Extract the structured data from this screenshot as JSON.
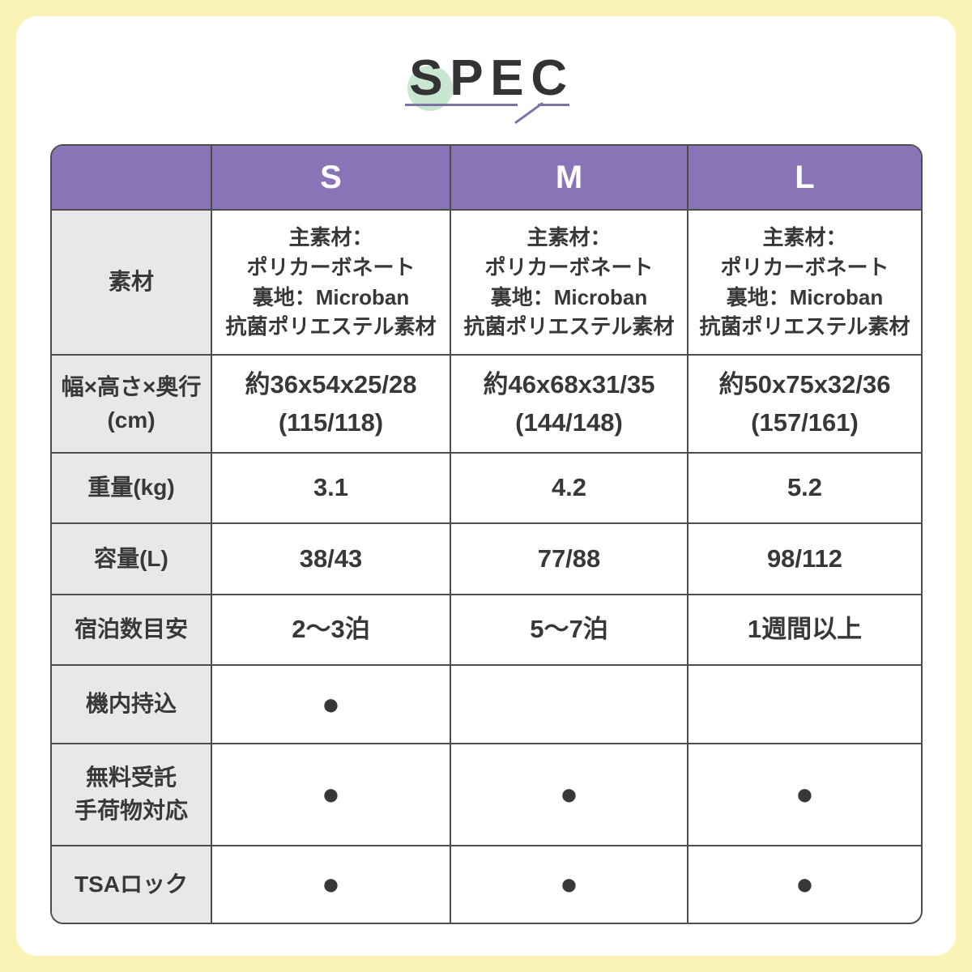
{
  "page": {
    "frame_color": "#FAF3B5",
    "card_color": "#FFFFFF"
  },
  "title": {
    "text": "SPEC",
    "text_color": "#333333",
    "circle_color": "#C8E6D0",
    "underline_color": "#7C73A5"
  },
  "table": {
    "border_color": "#4D4D4D",
    "header_bg": "#8A74B8",
    "header_text_color": "#FFFFFF",
    "label_bg": "#E9E8E8",
    "text_color": "#383838",
    "dot_symbol": "●",
    "columns": [
      "S",
      "M",
      "L"
    ],
    "rows": [
      {
        "key": "material",
        "label_lines": [
          "素材"
        ],
        "values": [
          [
            "主素材：",
            "ポリカーボネート",
            "裏地：Microban",
            "抗菌ポリエステル素材"
          ],
          [
            "主素材：",
            "ポリカーボネート",
            "裏地：Microban",
            "抗菌ポリエステル素材"
          ],
          [
            "主素材：",
            "ポリカーボネート",
            "裏地：Microban",
            "抗菌ポリエステル素材"
          ]
        ]
      },
      {
        "key": "dimensions",
        "label_lines": [
          "幅×高さ×奥行",
          "(cm)"
        ],
        "values": [
          [
            "約36x54x25/28",
            "(115/118)"
          ],
          [
            "約46x68x31/35",
            "(144/148)"
          ],
          [
            "約50x75x32/36",
            "(157/161)"
          ]
        ]
      },
      {
        "key": "weight",
        "label_lines": [
          "重量(kg)"
        ],
        "values": [
          [
            "3.1"
          ],
          [
            "4.2"
          ],
          [
            "5.2"
          ]
        ]
      },
      {
        "key": "capacity",
        "label_lines": [
          "容量(L)"
        ],
        "values": [
          [
            "38/43"
          ],
          [
            "77/88"
          ],
          [
            "98/112"
          ]
        ]
      },
      {
        "key": "nights",
        "label_lines": [
          "宿泊数目安"
        ],
        "values": [
          [
            "2〜3泊"
          ],
          [
            "5〜7泊"
          ],
          [
            "1週間以上"
          ]
        ]
      },
      {
        "key": "carry-on",
        "label_lines": [
          "機内持込"
        ],
        "values": [
          [
            "●"
          ],
          [],
          []
        ]
      },
      {
        "key": "free-checked",
        "label_lines": [
          "無料受託",
          "手荷物対応"
        ],
        "values": [
          [
            "●"
          ],
          [
            "●"
          ],
          [
            "●"
          ]
        ]
      },
      {
        "key": "tsa-lock",
        "label_lines": [
          "TSAロック"
        ],
        "values": [
          [
            "●"
          ],
          [
            "●"
          ],
          [
            "●"
          ]
        ]
      }
    ]
  }
}
